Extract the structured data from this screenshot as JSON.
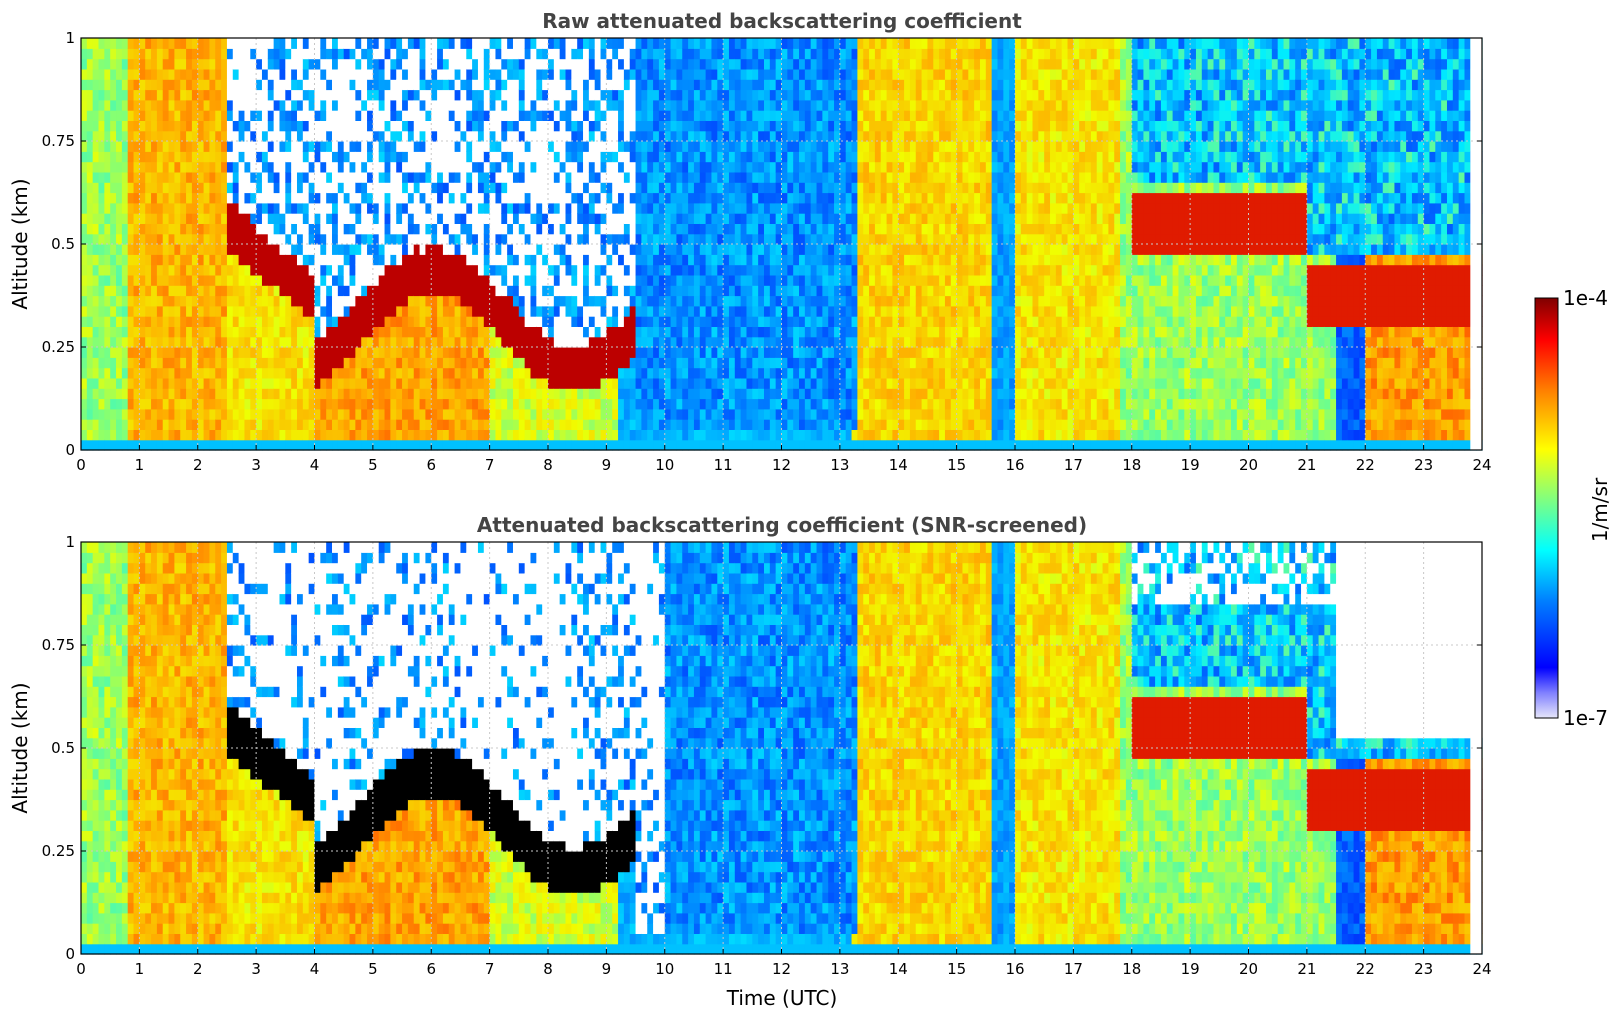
{
  "chart_data": [
    {
      "type": "heatmap",
      "title": "Raw attenuated backscattering coefficient",
      "xlabel": "",
      "ylabel": "Altitude (km)",
      "xlim": [
        0,
        24
      ],
      "ylim": [
        0,
        1
      ],
      "x_ticks": [
        "0",
        "1",
        "2",
        "3",
        "4",
        "5",
        "6",
        "7",
        "8",
        "9",
        "10",
        "11",
        "12",
        "13",
        "14",
        "15",
        "16",
        "17",
        "18",
        "19",
        "20",
        "21",
        "22",
        "23",
        "24"
      ],
      "y_ticks": [
        "0",
        "0.25",
        "0.5",
        "0.75",
        "1"
      ],
      "grid": true,
      "colormap": "jet",
      "color_scale": "log",
      "screened": false
    },
    {
      "type": "heatmap",
      "title": "Attenuated backscattering coefficient (SNR-screened)",
      "xlabel": "Time (UTC)",
      "ylabel": "Altitude (km)",
      "xlim": [
        0,
        24
      ],
      "ylim": [
        0,
        1
      ],
      "x_ticks": [
        "0",
        "1",
        "2",
        "3",
        "4",
        "5",
        "6",
        "7",
        "8",
        "9",
        "10",
        "11",
        "12",
        "13",
        "14",
        "15",
        "16",
        "17",
        "18",
        "19",
        "20",
        "21",
        "22",
        "23",
        "24"
      ],
      "y_ticks": [
        "0",
        "0.25",
        "0.5",
        "0.75",
        "1"
      ],
      "grid": true,
      "colormap": "jet",
      "color_scale": "log",
      "screened": true
    }
  ],
  "colorbar": {
    "label": "1/m/sr",
    "max_label": "1e-4",
    "min_label": "1e-7",
    "range": [
      1e-07,
      0.0001
    ],
    "colors": [
      "#e6e6fa",
      "#0000ff",
      "#00a0ff",
      "#00ffff",
      "#80ff80",
      "#ffff00",
      "#ff8000",
      "#ff0000",
      "#800000"
    ]
  }
}
